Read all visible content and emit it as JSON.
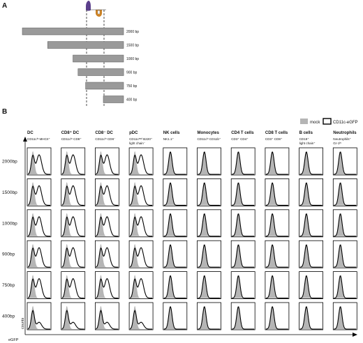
{
  "panel_a": {
    "letter": "A",
    "fragments": [
      {
        "label": "2000 bp",
        "length_bp": 2000
      },
      {
        "label": "1500 bp",
        "length_bp": 1500
      },
      {
        "label": "1000 bp",
        "length_bp": 1000
      },
      {
        "label": "900 bp",
        "length_bp": 900
      },
      {
        "label": "750 bp",
        "length_bp": 750
      },
      {
        "label": "400 bp",
        "length_bp": 400
      }
    ],
    "colors": {
      "bar": "#9a9a9a",
      "site_purple": "#5b3f8c",
      "site_orange": "#e0902a"
    }
  },
  "panel_b": {
    "letter": "B",
    "legend": {
      "mock": "mock",
      "gfp": "CD11c-eGFP"
    },
    "rows": [
      "2000bp",
      "1500bp",
      "1000bp",
      "900bp",
      "750bp",
      "400bp"
    ],
    "columns": [
      {
        "title": "DC",
        "sub1": "CD11cʰᶦ MHCII⁺",
        "sub2": ""
      },
      {
        "title": "CD8⁺ DC",
        "sub1": "CD11cʰᶦ CD8⁺",
        "sub2": ""
      },
      {
        "title": "CD8⁻ DC",
        "sub1": "CD11cʰᶦ CD8⁻",
        "sub2": ""
      },
      {
        "title": "pDC",
        "sub1": "CD11cᵐᶦᵈ B220⁺",
        "sub2": "light chain⁻"
      },
      {
        "title": "NK cells",
        "sub1": "NK1.1⁺",
        "sub2": ""
      },
      {
        "title": "Monocytes",
        "sub1": "CD11cˡᵒ CD11b⁺",
        "sub2": ""
      },
      {
        "title": "CD4 T cells",
        "sub1": "CD3⁺ CD4⁺",
        "sub2": ""
      },
      {
        "title": "CD8 T cells",
        "sub1": "CD3⁺ CD8⁺",
        "sub2": ""
      },
      {
        "title": "B cells",
        "sub1": "CD19⁺",
        "sub2": "light chain⁺"
      },
      {
        "title": "Neutrophils",
        "sub1": "Neutrophils⁺",
        "sub2": "Gr-1ʰᶦ"
      }
    ],
    "y_axis_label": "counts",
    "x_axis_label": "eGFP",
    "colors": {
      "mock_fill": "#b5b5b5",
      "gfp_line": "#000000"
    }
  }
}
